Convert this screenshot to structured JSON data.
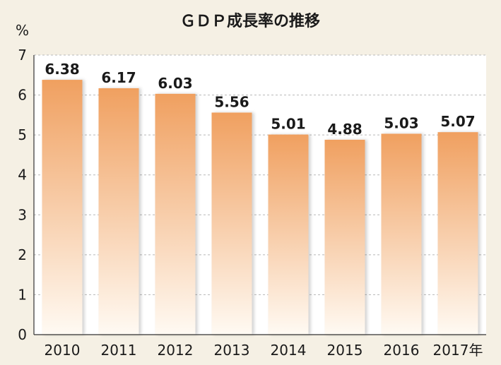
{
  "chart_data": {
    "type": "bar",
    "title": "ＧＤＰ成長率の推移",
    "ylabel": "%",
    "xlabel": "",
    "categories": [
      "2010",
      "2011",
      "2012",
      "2013",
      "2014",
      "2015",
      "2016",
      "2017年"
    ],
    "values": [
      6.38,
      6.17,
      6.03,
      5.56,
      5.01,
      4.88,
      5.03,
      5.07
    ],
    "data_labels": [
      "6.38",
      "6.17",
      "6.03",
      "5.56",
      "5.01",
      "4.88",
      "5.03",
      "5.07"
    ],
    "ylim": [
      0,
      7
    ],
    "yticks": [
      "0",
      "1",
      "2",
      "3",
      "4",
      "5",
      "6",
      "7"
    ],
    "grid": true,
    "legend": "none"
  },
  "colors": {
    "page_background": "#f5f0e4",
    "plot_background": "#ffffff",
    "bar_top": "#f0a060",
    "bar_bottom": "#fffaf3",
    "gridline": "#b8b8b8",
    "text": "#1a1a1a"
  }
}
